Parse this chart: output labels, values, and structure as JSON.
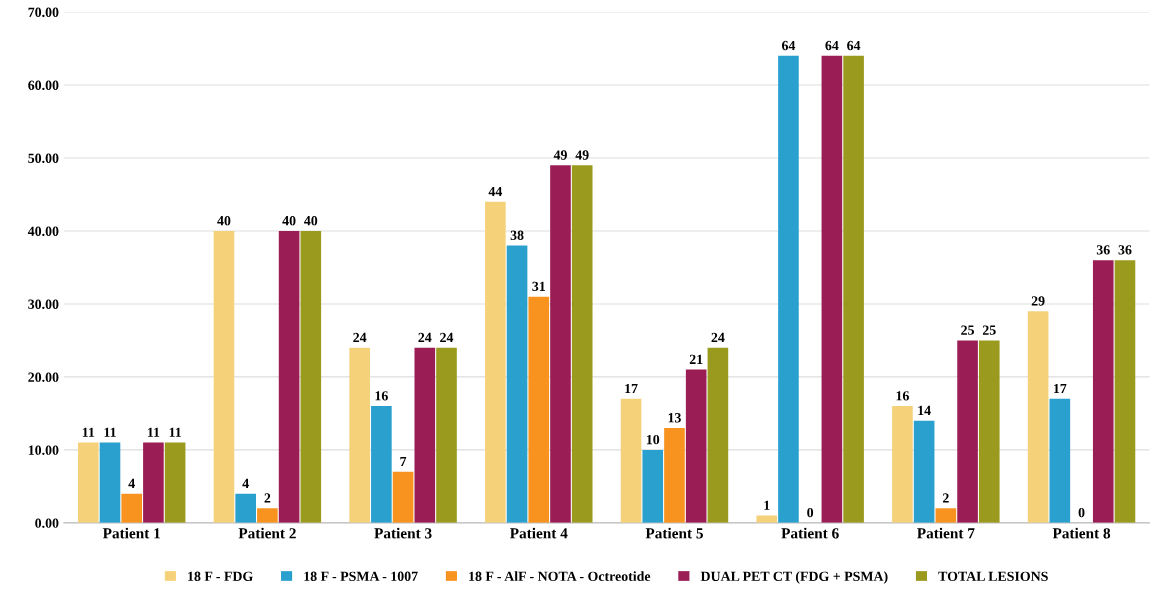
{
  "chart_data": {
    "type": "bar",
    "categories": [
      "Patient 1",
      "Patient 2",
      "Patient 3",
      "Patient 4",
      "Patient 5",
      "Patient 6",
      "Patient 7",
      "Patient 8"
    ],
    "series": [
      {
        "name": "18 F - FDG",
        "color": "#f5d27a",
        "values": [
          11,
          40,
          24,
          44,
          17,
          1,
          16,
          29
        ]
      },
      {
        "name": "18 F - PSMA - 1007",
        "color": "#2aa0cf",
        "values": [
          11,
          4,
          16,
          38,
          10,
          64,
          14,
          17
        ]
      },
      {
        "name": "18 F - AlF - NOTA - Octreotide",
        "color": "#f7931e",
        "values": [
          4,
          2,
          7,
          31,
          13,
          0,
          2,
          0
        ]
      },
      {
        "name": "DUAL PET CT (FDG + PSMA)",
        "color": "#9b1d55",
        "values": [
          11,
          40,
          24,
          49,
          21,
          64,
          25,
          36
        ]
      },
      {
        "name": "TOTAL LESIONS",
        "color": "#9a9a1e",
        "values": [
          11,
          40,
          24,
          49,
          24,
          64,
          25,
          36
        ]
      }
    ],
    "ylim": [
      0,
      70
    ],
    "yticks": [
      {
        "value": 0,
        "label": "0.00"
      },
      {
        "value": 10,
        "label": "10.00"
      },
      {
        "value": 20,
        "label": "20.00"
      },
      {
        "value": 30,
        "label": "30.00"
      },
      {
        "value": 40,
        "label": "40.00"
      },
      {
        "value": 50,
        "label": "50.00"
      },
      {
        "value": 60,
        "label": "60.00"
      },
      {
        "value": 70,
        "label": "70.00"
      }
    ],
    "grid": "y",
    "legend": "bottom",
    "data_labels": true
  }
}
